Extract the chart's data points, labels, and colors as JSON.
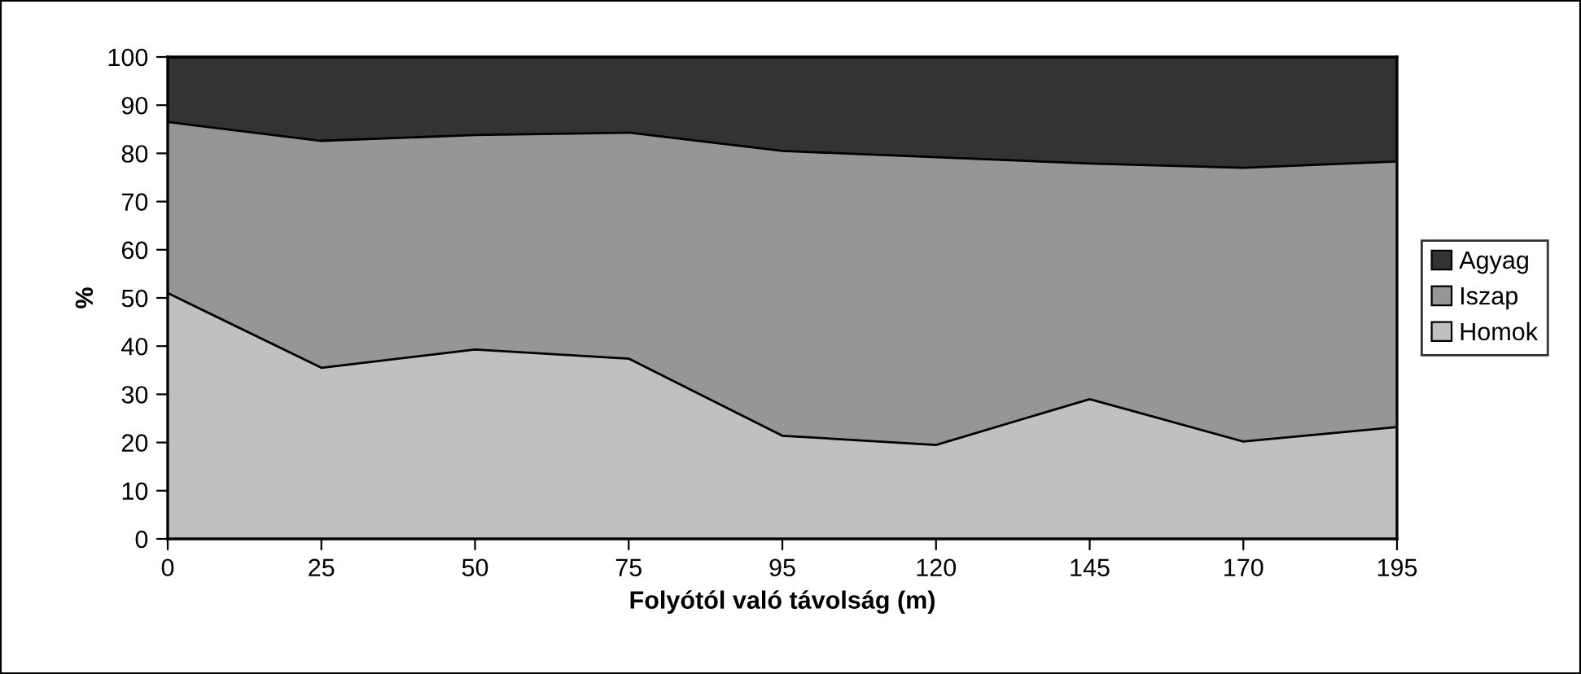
{
  "chart_data": {
    "type": "area",
    "stacked": true,
    "xlabel": "Folyótól való távolság (m)",
    "ylabel": "%",
    "categories": [
      "0",
      "25",
      "50",
      "75",
      "95",
      "120",
      "145",
      "170",
      "195"
    ],
    "series": [
      {
        "name": "Homok",
        "color": "#c0c0c0",
        "values": [
          51.0,
          35.5,
          39.3,
          37.4,
          21.4,
          19.5,
          29.0,
          20.2,
          23.2
        ]
      },
      {
        "name": "Iszap",
        "color": "#969696",
        "values": [
          35.5,
          47.1,
          44.5,
          46.9,
          59.1,
          59.7,
          48.9,
          56.8,
          55.1
        ]
      },
      {
        "name": "Agyag",
        "color": "#333333",
        "values": [
          13.5,
          17.4,
          16.2,
          15.7,
          19.5,
          20.8,
          22.1,
          23.0,
          21.7
        ]
      }
    ],
    "ylim": [
      0,
      100
    ],
    "yticks": [
      0,
      10,
      20,
      30,
      40,
      50,
      60,
      70,
      80,
      90,
      100
    ],
    "grid": false,
    "legend": "right"
  }
}
